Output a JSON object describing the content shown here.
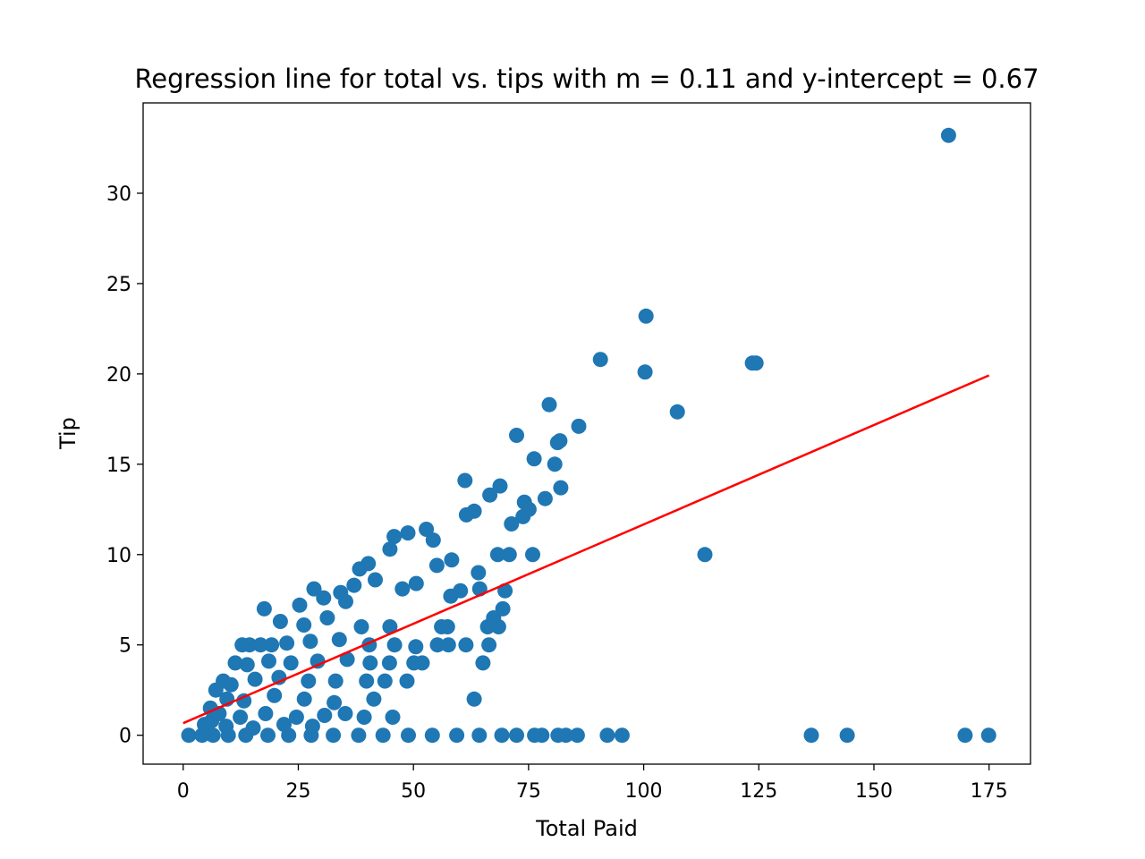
{
  "chart_data": {
    "type": "scatter",
    "title": "Regression line for total vs. tips with m = 0.11 and y-intercept = 0.67",
    "xlabel": "Total Paid",
    "ylabel": "Tip",
    "xlim": [
      -8.7,
      184.0
    ],
    "ylim": [
      -1.6,
      35.0
    ],
    "xticks": [
      0,
      25,
      50,
      75,
      100,
      125,
      150,
      175
    ],
    "yticks": [
      0,
      5,
      10,
      15,
      20,
      25,
      30
    ],
    "grid": false,
    "legend": "none",
    "colors": {
      "points": "#1f77b4",
      "line": "#ff0000"
    },
    "regression": {
      "m": 0.11,
      "b": 0.67,
      "x_range": [
        0,
        175
      ]
    },
    "series": [
      {
        "values": [
          [
            166.2,
            33.2
          ],
          [
            100.5,
            23.2
          ],
          [
            90.6,
            20.8
          ],
          [
            100.3,
            20.1
          ],
          [
            123.6,
            20.6
          ],
          [
            124.4,
            20.6
          ],
          [
            79.5,
            18.3
          ],
          [
            107.3,
            17.9
          ],
          [
            85.9,
            17.1
          ],
          [
            72.4,
            16.6
          ],
          [
            81.8,
            16.3
          ],
          [
            81.3,
            16.2
          ],
          [
            76.2,
            15.3
          ],
          [
            80.7,
            15.0
          ],
          [
            82.0,
            13.7
          ],
          [
            61.2,
            14.1
          ],
          [
            78.6,
            13.1
          ],
          [
            68.8,
            13.8
          ],
          [
            66.6,
            13.3
          ],
          [
            74.1,
            12.9
          ],
          [
            61.5,
            12.2
          ],
          [
            63.2,
            12.4
          ],
          [
            113.3,
            10.0
          ],
          [
            45.8,
            11.0
          ],
          [
            48.8,
            11.2
          ],
          [
            44.9,
            10.3
          ],
          [
            52.8,
            11.4
          ],
          [
            54.3,
            10.8
          ],
          [
            38.3,
            9.2
          ],
          [
            40.2,
            9.5
          ],
          [
            58.3,
            9.7
          ],
          [
            55.1,
            9.4
          ],
          [
            64.1,
            9.0
          ],
          [
            68.3,
            10.0
          ],
          [
            70.8,
            10.0
          ],
          [
            75.9,
            10.0
          ],
          [
            28.4,
            8.1
          ],
          [
            34.2,
            7.9
          ],
          [
            37.1,
            8.3
          ],
          [
            41.7,
            8.6
          ],
          [
            47.6,
            8.1
          ],
          [
            50.6,
            8.4
          ],
          [
            60.2,
            8.0
          ],
          [
            64.4,
            8.1
          ],
          [
            69.9,
            8.0
          ],
          [
            71.3,
            11.7
          ],
          [
            73.8,
            12.1
          ],
          [
            75.1,
            12.5
          ],
          [
            17.6,
            7.0
          ],
          [
            25.3,
            7.2
          ],
          [
            30.5,
            7.6
          ],
          [
            35.3,
            7.4
          ],
          [
            58.1,
            7.7
          ],
          [
            69.4,
            7.0
          ],
          [
            21.1,
            6.3
          ],
          [
            26.2,
            6.1
          ],
          [
            31.3,
            6.5
          ],
          [
            38.7,
            6.0
          ],
          [
            44.9,
            6.0
          ],
          [
            56.1,
            6.0
          ],
          [
            57.4,
            6.0
          ],
          [
            66.1,
            6.0
          ],
          [
            67.4,
            6.5
          ],
          [
            68.5,
            6.0
          ],
          [
            12.8,
            5.0
          ],
          [
            14.4,
            5.0
          ],
          [
            16.8,
            5.0
          ],
          [
            19.2,
            5.0
          ],
          [
            22.5,
            5.1
          ],
          [
            27.6,
            5.2
          ],
          [
            33.9,
            5.3
          ],
          [
            40.4,
            5.0
          ],
          [
            45.9,
            5.0
          ],
          [
            50.5,
            4.9
          ],
          [
            55.2,
            5.0
          ],
          [
            57.6,
            5.0
          ],
          [
            61.4,
            5.0
          ],
          [
            66.4,
            5.0
          ],
          [
            11.3,
            4.0
          ],
          [
            13.9,
            3.9
          ],
          [
            18.6,
            4.1
          ],
          [
            23.4,
            4.0
          ],
          [
            29.2,
            4.1
          ],
          [
            35.6,
            4.2
          ],
          [
            40.6,
            4.0
          ],
          [
            44.8,
            4.0
          ],
          [
            50.1,
            4.0
          ],
          [
            51.9,
            4.0
          ],
          [
            65.1,
            4.0
          ],
          [
            8.7,
            3.0
          ],
          [
            10.4,
            2.8
          ],
          [
            15.6,
            3.1
          ],
          [
            20.8,
            3.2
          ],
          [
            27.2,
            3.0
          ],
          [
            33.1,
            3.0
          ],
          [
            39.8,
            3.0
          ],
          [
            43.8,
            3.0
          ],
          [
            48.6,
            3.0
          ],
          [
            7.1,
            2.5
          ],
          [
            9.5,
            2.0
          ],
          [
            13.2,
            1.9
          ],
          [
            19.8,
            2.2
          ],
          [
            26.3,
            2.0
          ],
          [
            32.8,
            1.8
          ],
          [
            41.4,
            2.0
          ],
          [
            63.2,
            2.0
          ],
          [
            5.9,
            1.5
          ],
          [
            7.8,
            1.2
          ],
          [
            12.4,
            1.0
          ],
          [
            17.9,
            1.2
          ],
          [
            24.6,
            1.0
          ],
          [
            30.7,
            1.1
          ],
          [
            35.2,
            1.2
          ],
          [
            39.3,
            1.0
          ],
          [
            45.5,
            1.0
          ],
          [
            4.6,
            0.6
          ],
          [
            6.2,
            0.8
          ],
          [
            9.3,
            0.5
          ],
          [
            15.2,
            0.4
          ],
          [
            21.9,
            0.6
          ],
          [
            28.1,
            0.5
          ],
          [
            1.2,
            0.0
          ],
          [
            4.1,
            0.0
          ],
          [
            6.5,
            0.0
          ],
          [
            9.8,
            0.0
          ],
          [
            13.6,
            0.0
          ],
          [
            18.4,
            0.0
          ],
          [
            22.9,
            0.0
          ],
          [
            27.8,
            0.0
          ],
          [
            32.6,
            0.0
          ],
          [
            38.1,
            0.0
          ],
          [
            43.4,
            0.0
          ],
          [
            48.9,
            0.0
          ],
          [
            54.1,
            0.0
          ],
          [
            59.4,
            0.0
          ],
          [
            64.3,
            0.0
          ],
          [
            69.2,
            0.0
          ],
          [
            72.4,
            0.0
          ],
          [
            76.3,
            0.0
          ],
          [
            77.9,
            0.0
          ],
          [
            81.4,
            0.0
          ],
          [
            83.1,
            0.0
          ],
          [
            85.6,
            0.0
          ],
          [
            92.1,
            0.0
          ],
          [
            95.3,
            0.0
          ],
          [
            136.4,
            0.0
          ],
          [
            144.2,
            0.0
          ],
          [
            169.8,
            0.0
          ],
          [
            174.9,
            0.0
          ]
        ]
      }
    ]
  }
}
